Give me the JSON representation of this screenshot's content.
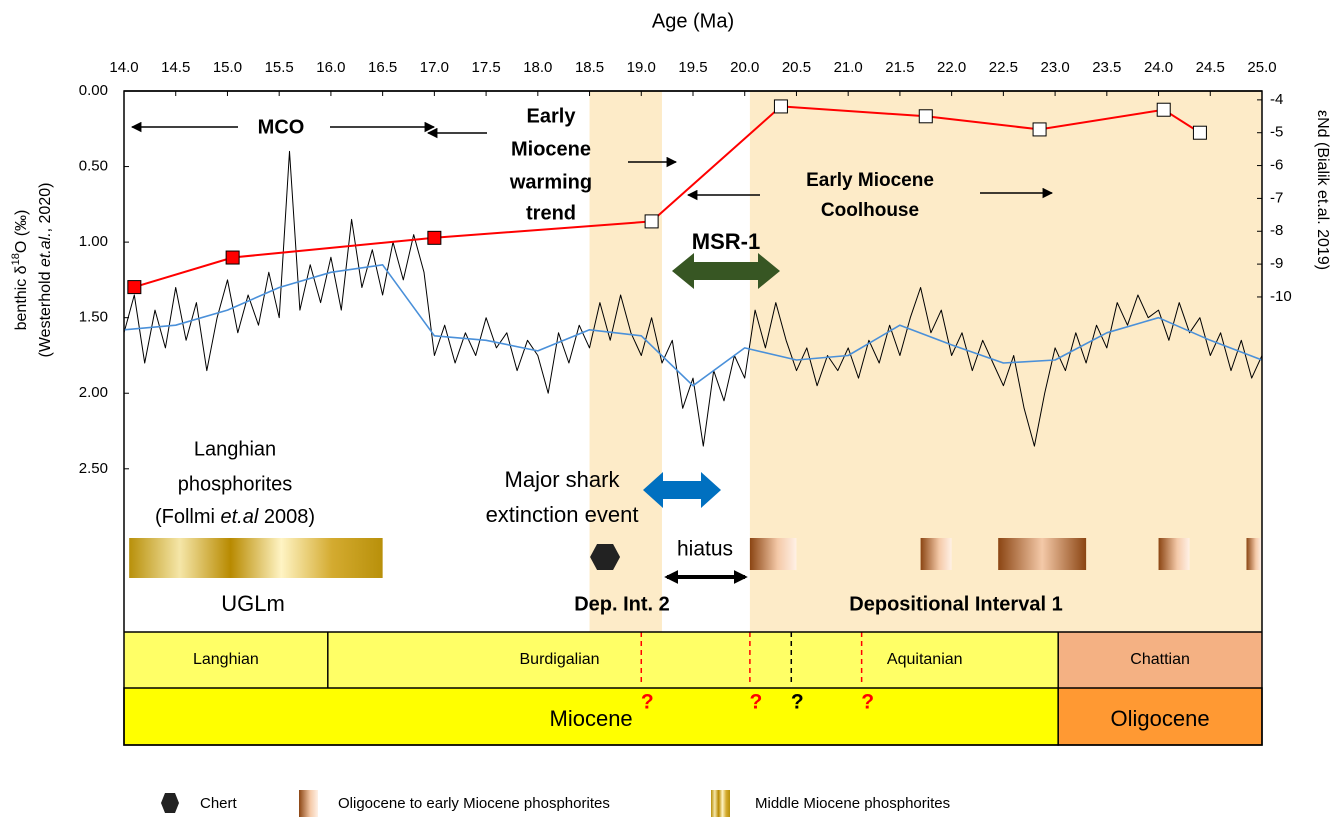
{
  "chart_data": {
    "type": "line",
    "x_label": "Age (Ma)",
    "xlim": [
      14.0,
      25.0
    ],
    "xticks": [
      {
        "value": 14,
        "label": "14.0"
      },
      14.5,
      {
        "value": 15,
        "label": "15.0"
      },
      15.5,
      {
        "value": 16,
        "label": "16.0"
      },
      16.5,
      {
        "value": 17,
        "label": "17.0"
      },
      17.5,
      {
        "value": 18,
        "label": "18.0"
      },
      18.5,
      {
        "value": 19,
        "label": "19.0"
      },
      19.5,
      {
        "value": 20,
        "label": "20.0"
      },
      20.5,
      {
        "value": 21,
        "label": "21.0"
      },
      21.5,
      {
        "value": 22,
        "label": "22.0"
      },
      22.5,
      {
        "value": 23,
        "label": "23.0"
      },
      23.5,
      {
        "value": 24,
        "label": "24.0"
      },
      24.5,
      {
        "value": 25,
        "label": "25.0"
      }
    ],
    "y_label": [
      [
        "benthic δ",
        "18",
        "O (‰)"
      ],
      [
        "(Westerhold ",
        "et.al.",
        ", 2020)"
      ]
    ],
    "ylim": [
      0,
      3.58
    ],
    "yticks": [
      {
        "value": 0,
        "label": "0.00"
      },
      {
        "value": 0.5,
        "label": "0.50"
      },
      {
        "value": 1,
        "label": "1.00"
      },
      {
        "value": 1.5,
        "label": "1.50"
      },
      {
        "value": 2,
        "label": "2.00"
      },
      {
        "value": 2.5,
        "label": "2.50"
      }
    ],
    "y2_label": "εNd (Bialik et.al. 2019)",
    "y2lim": [
      -3.73,
      -20.2
    ],
    "y2ticks": [
      -4,
      -5,
      -6,
      -7,
      -8,
      -9,
      -10
    ],
    "x": [
      14.0,
      14.1,
      14.2,
      14.3,
      14.4,
      14.5,
      14.6,
      14.7,
      14.8,
      14.9,
      15.0,
      15.1,
      15.2,
      15.3,
      15.4,
      15.5,
      15.6,
      15.7,
      15.8,
      15.9,
      16.0,
      16.1,
      16.2,
      16.3,
      16.4,
      16.5,
      16.6,
      16.7,
      16.8,
      16.9,
      17.0,
      17.1,
      17.2,
      17.3,
      17.4,
      17.5,
      17.6,
      17.7,
      17.8,
      17.9,
      18.0,
      18.1,
      18.2,
      18.3,
      18.4,
      18.5,
      18.6,
      18.7,
      18.8,
      18.9,
      19.0,
      19.1,
      19.2,
      19.3,
      19.4,
      19.5,
      19.6,
      19.7,
      19.8,
      19.9,
      20.0,
      20.1,
      20.2,
      20.3,
      20.4,
      20.5,
      20.6,
      20.7,
      20.8,
      20.9,
      21.0,
      21.1,
      21.2,
      21.3,
      21.4,
      21.5,
      21.6,
      21.7,
      21.8,
      21.9,
      22.0,
      22.1,
      22.2,
      22.3,
      22.4,
      22.5,
      22.6,
      22.7,
      22.8,
      22.9,
      23.0,
      23.1,
      23.2,
      23.3,
      23.4,
      23.5,
      23.6,
      23.7,
      23.8,
      23.9,
      24.0,
      24.1,
      24.2,
      24.3,
      24.4,
      24.5,
      24.6,
      24.7,
      24.8,
      24.9,
      25.0
    ],
    "series": [
      {
        "color": "#000000",
        "values": [
          1.6,
          1.35,
          1.8,
          1.45,
          1.7,
          1.3,
          1.65,
          1.4,
          1.85,
          1.5,
          1.25,
          1.6,
          1.35,
          1.55,
          1.2,
          1.5,
          0.4,
          1.45,
          1.15,
          1.4,
          1.1,
          1.45,
          0.85,
          1.3,
          1.05,
          1.35,
          1.0,
          1.25,
          0.95,
          1.2,
          1.75,
          1.55,
          1.8,
          1.6,
          1.75,
          1.5,
          1.7,
          1.6,
          1.85,
          1.65,
          1.75,
          2.0,
          1.6,
          1.8,
          1.55,
          1.7,
          1.4,
          1.65,
          1.35,
          1.6,
          1.75,
          1.5,
          1.8,
          1.65,
          2.1,
          1.9,
          2.35,
          1.85,
          2.05,
          1.75,
          1.9,
          1.45,
          1.7,
          1.4,
          1.65,
          1.85,
          1.7,
          1.95,
          1.75,
          1.85,
          1.7,
          1.9,
          1.65,
          1.8,
          1.55,
          1.75,
          1.5,
          1.3,
          1.6,
          1.45,
          1.75,
          1.6,
          1.85,
          1.65,
          1.8,
          1.95,
          1.75,
          2.1,
          2.35,
          2.0,
          1.7,
          1.85,
          1.6,
          1.8,
          1.55,
          1.7,
          1.4,
          1.55,
          1.35,
          1.5,
          1.45,
          1.65,
          1.4,
          1.6,
          1.5,
          1.75,
          1.6,
          1.85,
          1.65,
          1.9,
          1.75
        ]
      },
      {
        "color": "#4a90d9",
        "x": [
          14.0,
          14.5,
          15.0,
          15.5,
          16.0,
          16.5,
          17.0,
          17.5,
          18.0,
          18.5,
          19.0,
          19.5,
          20.0,
          20.5,
          21.0,
          21.5,
          22.0,
          22.5,
          23.0,
          23.5,
          24.0,
          24.5,
          25.0
        ],
        "values": [
          1.58,
          1.55,
          1.45,
          1.3,
          1.2,
          1.15,
          1.62,
          1.65,
          1.72,
          1.58,
          1.62,
          1.95,
          1.7,
          1.78,
          1.75,
          1.55,
          1.68,
          1.8,
          1.78,
          1.6,
          1.5,
          1.65,
          1.78
        ]
      },
      {
        "color": "#ff0000",
        "axis": "y2",
        "x": [
          14.1,
          15.05,
          17.0,
          19.1,
          20.35,
          21.75,
          22.85,
          24.05,
          24.4
        ],
        "values": [
          -9.7,
          -8.8,
          -8.2,
          -7.7,
          -4.2,
          -4.5,
          -4.9,
          -4.3,
          -5.0
        ],
        "marker_colors": [
          "#ff0000",
          "#ff0000",
          "#ff0000",
          "#ffffff",
          "#ffffff",
          "#ffffff",
          "#ffffff",
          "#ffffff",
          "#ffffff"
        ]
      }
    ],
    "shaded": {
      "color": "#fdebc8",
      "ranges": [
        [
          18.5,
          19.2
        ],
        [
          20.05,
          25.0
        ]
      ]
    },
    "annotations": {
      "mco": "MCO",
      "warming": [
        "Early",
        "Miocene",
        "warming",
        "trend"
      ],
      "coolhouse": [
        "Early Miocene",
        "Coolhouse"
      ],
      "msr": "MSR-1",
      "langhian": [
        "Langhian",
        "phosphorites",
        [
          "(Follmi ",
          "et.al",
          " 2008)"
        ]
      ],
      "shark": [
        "Major shark",
        "extinction event"
      ],
      "hiatus": "hiatus",
      "uglm": "UGLm",
      "dep2": "Dep. Int. 2",
      "dep1": "Depositional Interval 1"
    },
    "phosphorites": {
      "middle": [
        [
          14.05,
          16.5
        ]
      ],
      "oligo": [
        [
          20.05,
          20.5
        ],
        [
          21.7,
          22.0
        ],
        [
          22.45,
          23.3
        ],
        [
          24.0,
          24.3
        ],
        [
          24.85,
          25.0
        ]
      ]
    },
    "chert": [
      18.65
    ],
    "stages": [
      {
        "name": "Langhian",
        "range": [
          14.0,
          15.97
        ],
        "color": "#ffff66"
      },
      {
        "name": "Burdigalian",
        "range": [
          15.97,
          20.45
        ],
        "color": "#ffff66"
      },
      {
        "name": "Aquitanian",
        "range": [
          20.45,
          23.03
        ],
        "color": "#ffff66"
      },
      {
        "name": "Chattian",
        "range": [
          23.03,
          25.0
        ],
        "color": "#f4b183"
      }
    ],
    "epochs": [
      {
        "name": "Miocene",
        "range": [
          14.0,
          23.03
        ],
        "color": "#ffff00"
      },
      {
        "name": "Oligocene",
        "range": [
          23.03,
          25.0
        ],
        "color": "#ff9933"
      }
    ],
    "uncertain_boundaries": [
      {
        "age": 19.0,
        "color": "#ff0000",
        "label": "?"
      },
      {
        "age": 20.05,
        "color": "#ff0000",
        "label": "?"
      },
      {
        "age": 20.45,
        "color": "#000000",
        "label": "?"
      },
      {
        "age": 21.13,
        "color": "#ff0000",
        "label": "?"
      }
    ],
    "legend": [
      {
        "label": "Chert"
      },
      {
        "label": "Oligocene to early Miocene phosphorites"
      },
      {
        "label": "Middle Miocene phosphorites"
      }
    ]
  }
}
